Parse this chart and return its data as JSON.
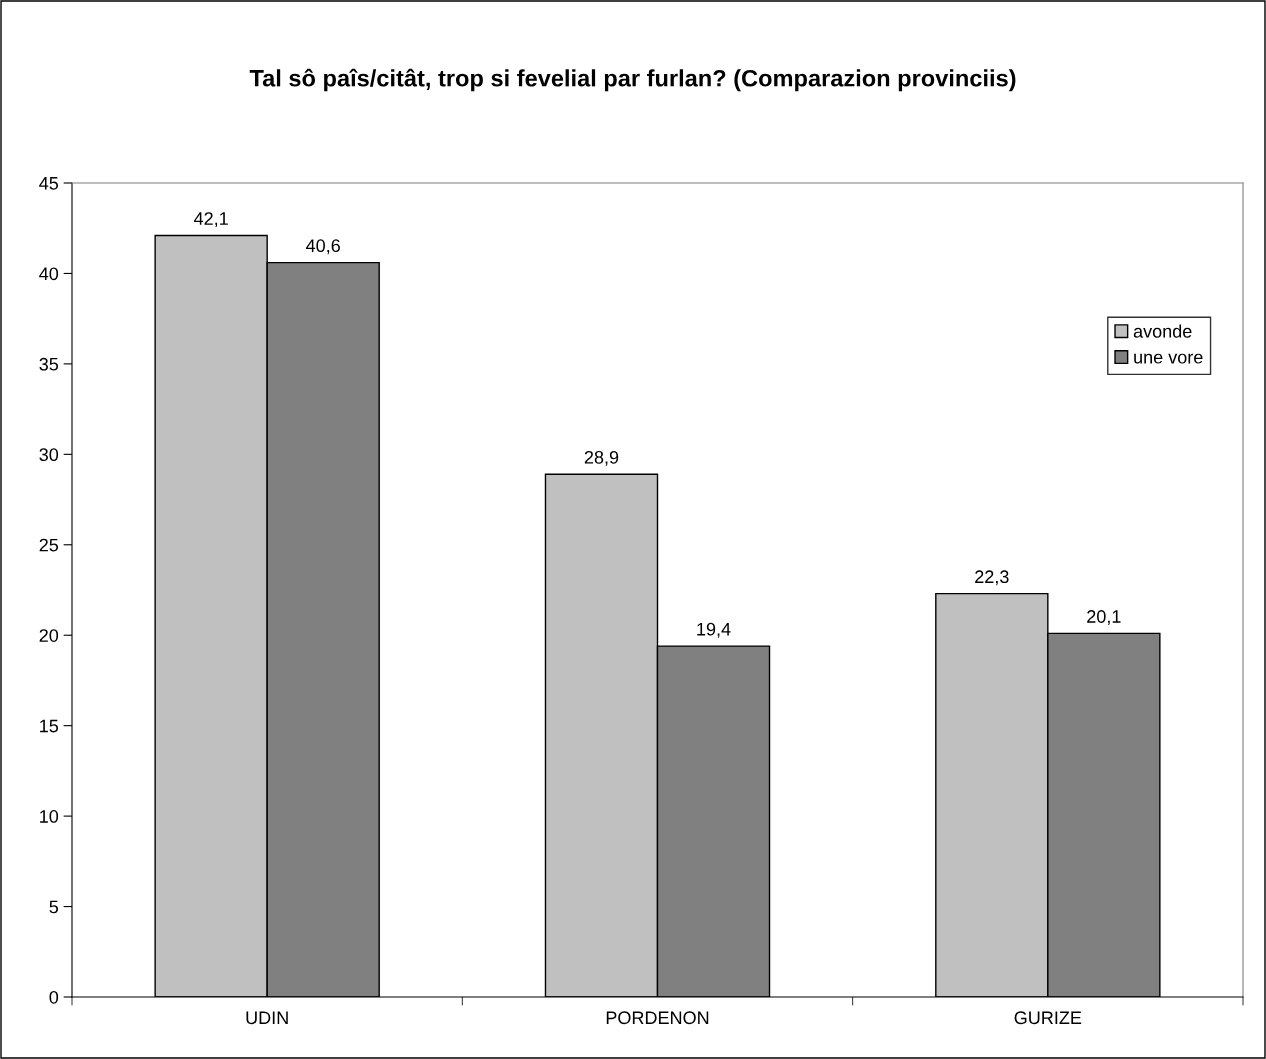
{
  "chart_data": {
    "type": "bar",
    "title": "Tal sô paîs/citât, trop si fevelial par furlan? (Comparazion provinciis)",
    "categories": [
      "UDIN",
      "PORDENON",
      "GURIZE"
    ],
    "series": [
      {
        "name": "avonde",
        "color": "#c0c0c0",
        "values": [
          42.1,
          28.9,
          22.3
        ],
        "value_labels": [
          "42,1",
          "28,9",
          "22,3"
        ]
      },
      {
        "name": "une vore",
        "color": "#808080",
        "values": [
          40.6,
          19.4,
          20.1
        ],
        "value_labels": [
          "40,6",
          "19,4",
          "20,1"
        ]
      }
    ],
    "ylim": [
      0,
      45
    ],
    "yticks": [
      0,
      5,
      10,
      15,
      20,
      25,
      30,
      35,
      40,
      45
    ],
    "grid": false,
    "legend": "right"
  }
}
